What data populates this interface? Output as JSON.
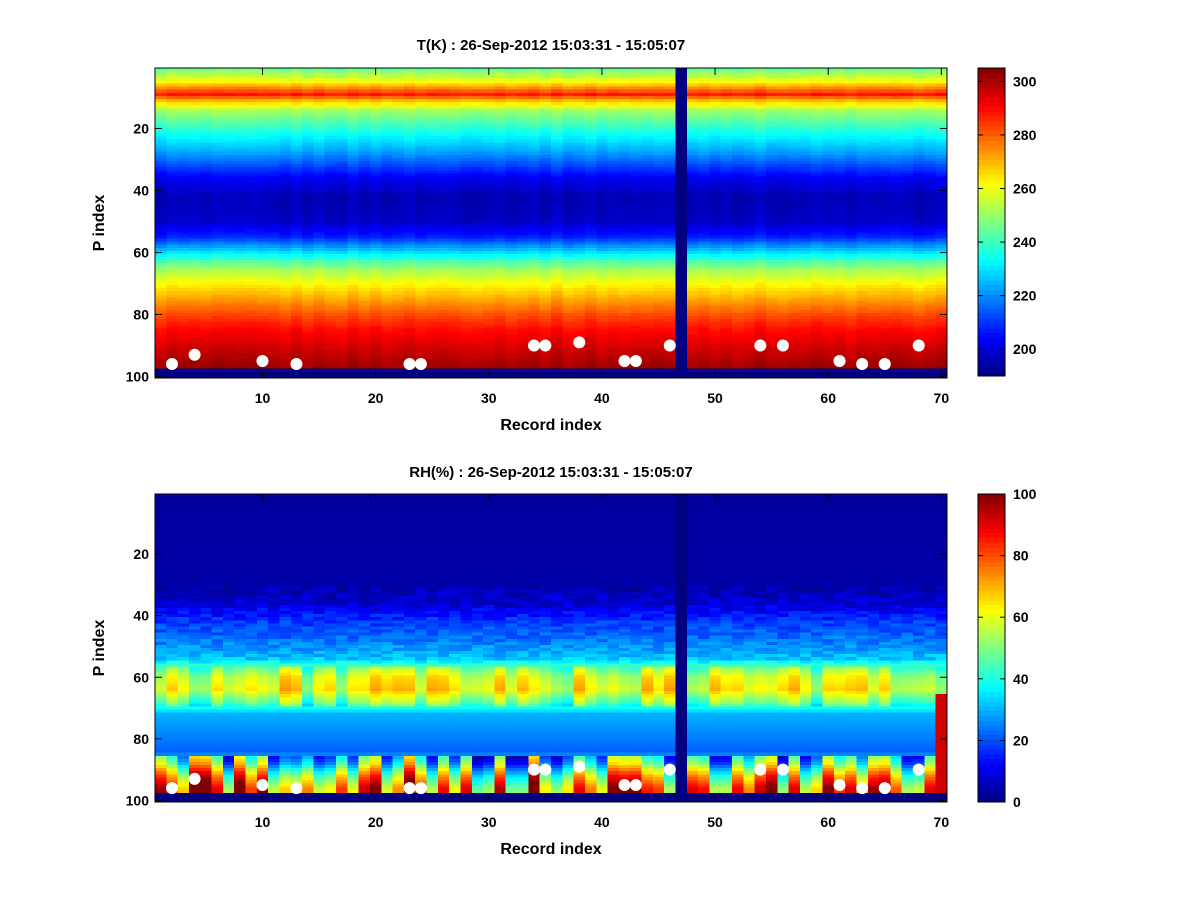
{
  "chart_data": [
    {
      "type": "heatmap",
      "title": "T(K) : 26-Sep-2012 15:03:31 - 15:05:07",
      "xlabel": "Record index",
      "ylabel": "P index",
      "xlim": [
        0.5,
        70.5
      ],
      "ylim": [
        0.5,
        100.5
      ],
      "y_reversed": true,
      "xticks": [
        10,
        20,
        30,
        40,
        50,
        60,
        70
      ],
      "yticks": [
        20,
        40,
        60,
        80,
        100
      ],
      "colorbar": {
        "min": 190,
        "max": 305,
        "ticks": [
          200,
          220,
          240,
          260,
          280,
          300
        ],
        "colormap": "jet"
      },
      "field_model": {
        "description": "T value (K) versus P index, same for every record",
        "p_index": [
          1,
          5,
          9,
          11,
          14,
          20,
          28,
          36,
          42,
          50,
          55,
          60,
          65,
          70,
          75,
          80,
          85,
          90,
          95,
          98
        ],
        "value": [
          246,
          262,
          288,
          270,
          252,
          238,
          222,
          203,
          196,
          198,
          208,
          230,
          250,
          262,
          272,
          282,
          290,
          295,
          300,
          302
        ]
      },
      "missing_records": [
        47
      ],
      "missing_p_from": 98,
      "surface_markers": {
        "record": [
          2,
          4,
          10,
          13,
          23,
          24,
          34,
          35,
          38,
          42,
          43,
          46,
          54,
          56,
          61,
          63,
          65,
          68
        ],
        "p_index": [
          96,
          93,
          95,
          96,
          96,
          96,
          90,
          90,
          89,
          95,
          95,
          90,
          90,
          90,
          95,
          96,
          96,
          90
        ]
      }
    },
    {
      "type": "heatmap",
      "title": "RH(%) : 26-Sep-2012 15:03:31 - 15:05:07",
      "xlabel": "Record index",
      "ylabel": "P index",
      "xlim": [
        0.5,
        70.5
      ],
      "ylim": [
        0.5,
        100.5
      ],
      "y_reversed": true,
      "xticks": [
        10,
        20,
        30,
        40,
        50,
        60,
        70
      ],
      "yticks": [
        20,
        40,
        60,
        80,
        100
      ],
      "colorbar": {
        "min": 0,
        "max": 100,
        "ticks": [
          0,
          20,
          40,
          60,
          80,
          100
        ],
        "colormap": "jet"
      },
      "field_model": {
        "description": "RH value (%) versus P index, typical record",
        "p_index": [
          1,
          30,
          36,
          42,
          48,
          54,
          57,
          60,
          64,
          68,
          72,
          78,
          84,
          88,
          92,
          96,
          98
        ],
        "value": [
          3,
          4,
          8,
          18,
          24,
          32,
          48,
          58,
          62,
          48,
          30,
          26,
          22,
          36,
          58,
          72,
          74
        ]
      },
      "missing_records": [
        47
      ],
      "missing_p_from": 98,
      "surface_markers": {
        "record": [
          2,
          4,
          10,
          13,
          23,
          24,
          34,
          35,
          38,
          42,
          43,
          46,
          54,
          56,
          61,
          63,
          65,
          68
        ],
        "p_index": [
          96,
          93,
          95,
          96,
          96,
          96,
          90,
          90,
          89,
          95,
          95,
          90,
          90,
          90,
          95,
          96,
          96,
          90
        ]
      }
    }
  ]
}
